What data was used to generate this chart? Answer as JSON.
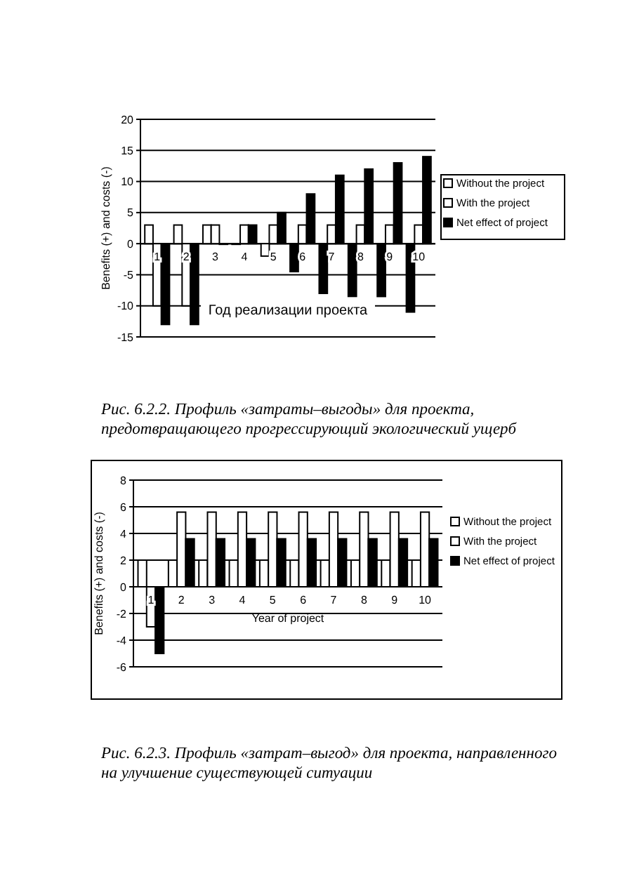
{
  "chart_data": [
    {
      "type": "bar",
      "ylabel": "Benefits (+) and costs (-)",
      "xlabel": "Год реализации проекта",
      "categories": [
        "1",
        "2",
        "3",
        "4",
        "5",
        "6",
        "7",
        "8",
        "9",
        "10"
      ],
      "series": [
        {
          "name": "Without the project",
          "color": "#ffffff",
          "colors": [
            "#ffffff",
            "#ffffff",
            "#ffffff",
            "#ffffff",
            "#ffffff",
            "#000000",
            "#000000",
            "#000000",
            "#000000",
            "#000000"
          ],
          "values": [
            3,
            3,
            3,
            0,
            -2,
            -4.5,
            -8,
            -8.5,
            -8.5,
            -11
          ]
        },
        {
          "name": "With the project",
          "color": "#ffffff",
          "values": [
            -10,
            -10,
            3,
            3,
            3,
            3,
            3,
            3,
            3,
            3
          ]
        },
        {
          "name": "Net effect of project",
          "color": "#000000",
          "values": [
            -13,
            -13,
            0,
            3,
            5,
            8,
            11,
            12,
            13,
            14
          ]
        }
      ],
      "ylim": [
        -15,
        20
      ],
      "yticks": [
        -15,
        -10,
        -5,
        0,
        5,
        10,
        15,
        20
      ],
      "grid": "y",
      "legend": "right",
      "annotations": [
        "Рис. 6.2.2. Профиль «затраты–выгоды» для проекта, предотвращающего прогрессирующий экологический ущерб"
      ]
    },
    {
      "type": "bar",
      "ylabel": "Benefits (+) and costs (-)",
      "xlabel": "Year of project",
      "categories": [
        "1",
        "2",
        "3",
        "4",
        "5",
        "6",
        "7",
        "8",
        "9",
        "10"
      ],
      "series": [
        {
          "name": "Without the project",
          "color": "#ffffff",
          "values": [
            2,
            2,
            2,
            2,
            2,
            2,
            2,
            2,
            2,
            2
          ]
        },
        {
          "name": "With the project",
          "color": "#ffffff",
          "values": [
            -3,
            5.6,
            5.6,
            5.6,
            5.6,
            5.6,
            5.6,
            5.6,
            5.6,
            5.6
          ]
        },
        {
          "name": "Net effect of project",
          "color": "#000000",
          "values": [
            -5,
            3.6,
            3.6,
            3.6,
            3.6,
            3.6,
            3.6,
            3.6,
            3.6,
            3.6
          ]
        }
      ],
      "ylim": [
        -6,
        8
      ],
      "yticks": [
        -6,
        -4,
        -2,
        0,
        2,
        4,
        6,
        8
      ],
      "grid": "y",
      "legend": "right",
      "annotations": [
        "Рис. 6.2.3. Профиль «затрат–выгод» для проекта, направленного на улучшение существующей ситуации"
      ]
    }
  ]
}
